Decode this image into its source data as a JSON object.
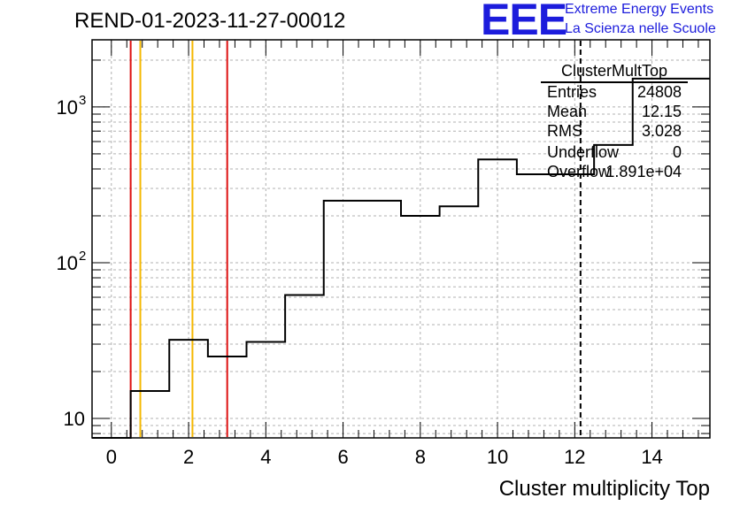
{
  "header": {
    "run_title": "REND-01-2023-11-27-00012",
    "logo_mark": "EEE",
    "logo_line1": "Extreme Energy Events",
    "logo_line2": "La Scienza nelle Scuole",
    "logo_color": "#1c1cdc"
  },
  "stats_box": {
    "title": "ClusterMultTop",
    "rows": [
      {
        "label": "Entries",
        "value": "24808"
      },
      {
        "label": "Mean",
        "value": "12.15"
      },
      {
        "label": "RMS",
        "value": "3.028"
      },
      {
        "label": "Underflow",
        "value": "0"
      },
      {
        "label": "Overflow",
        "value": "1.891e+04"
      }
    ]
  },
  "chart_data": {
    "type": "histogram",
    "title": "REND-01-2023-11-27-00012",
    "xlabel": "Cluster multiplicity Top",
    "ylabel": "",
    "xlim": [
      -0.5,
      15.5
    ],
    "ylim": [
      7.5,
      2700
    ],
    "yscale": "log",
    "grid": true,
    "legend": "none",
    "x_ticks": [
      0,
      2,
      4,
      6,
      8,
      10,
      12,
      14
    ],
    "y_ticks": [
      {
        "value": 10,
        "label": "10"
      },
      {
        "value": 100,
        "label": "10",
        "exp": "2"
      },
      {
        "value": 1000,
        "label": "10",
        "exp": "3"
      }
    ],
    "bins": [
      {
        "low": -0.5,
        "high": 0.5,
        "count": 0
      },
      {
        "low": 0.5,
        "high": 1.5,
        "count": 15
      },
      {
        "low": 1.5,
        "high": 2.5,
        "count": 32
      },
      {
        "low": 2.5,
        "high": 3.5,
        "count": 25
      },
      {
        "low": 3.5,
        "high": 4.5,
        "count": 31
      },
      {
        "low": 4.5,
        "high": 5.5,
        "count": 62
      },
      {
        "low": 5.5,
        "high": 6.5,
        "count": 250
      },
      {
        "low": 6.5,
        "high": 7.5,
        "count": 250
      },
      {
        "low": 7.5,
        "high": 8.5,
        "count": 200
      },
      {
        "low": 8.5,
        "high": 9.5,
        "count": 230
      },
      {
        "low": 9.5,
        "high": 10.5,
        "count": 460
      },
      {
        "low": 10.5,
        "high": 11.5,
        "count": 370
      },
      {
        "low": 11.5,
        "high": 12.5,
        "count": 370
      },
      {
        "low": 12.5,
        "high": 13.5,
        "count": 570
      },
      {
        "low": 13.5,
        "high": 14.5,
        "count": 1520
      },
      {
        "low": 14.5,
        "high": 15.5,
        "count": 1520
      }
    ],
    "vertical_lines": [
      {
        "x": 0.5,
        "color": "#dd1111",
        "style": "solid"
      },
      {
        "x": 0.75,
        "color": "#f5b800",
        "style": "solid"
      },
      {
        "x": 2.1,
        "color": "#f5b800",
        "style": "solid"
      },
      {
        "x": 3.0,
        "color": "#dd1111",
        "style": "solid"
      },
      {
        "x": 12.15,
        "color": "#000000",
        "style": "dashed"
      }
    ]
  }
}
